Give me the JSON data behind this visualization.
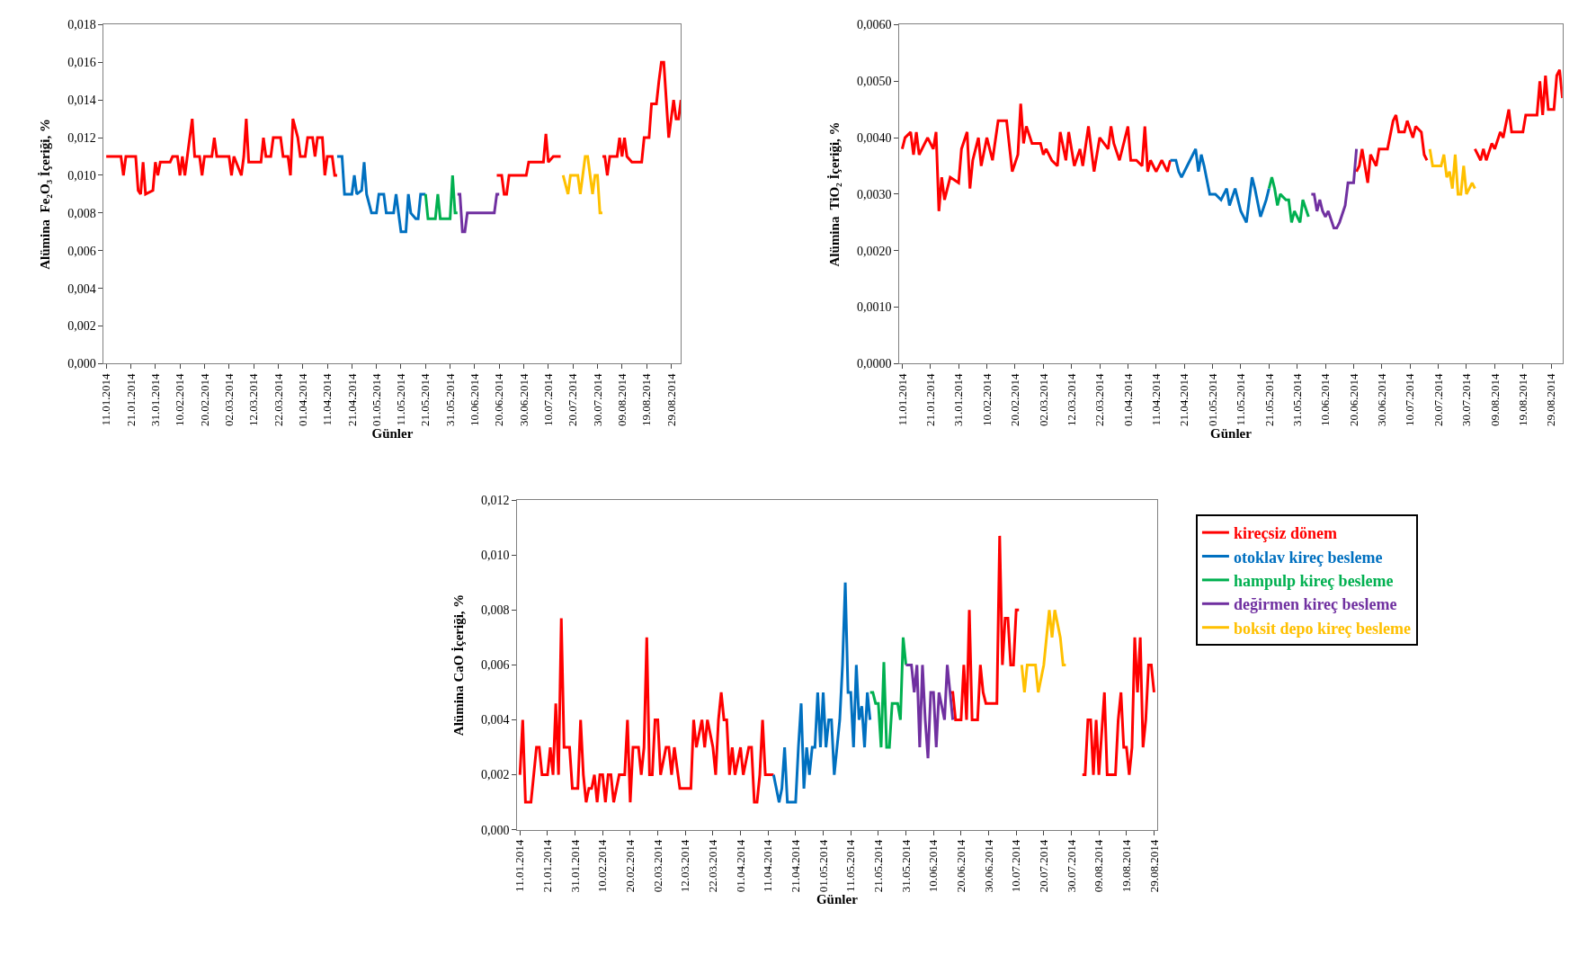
{
  "chart_data": [
    {
      "type": "line",
      "xlabel": "Günler",
      "ylabel": "Alümina  Fe₂O₃ İçeriği, %",
      "legend": "bottom right",
      "line_style": "solid",
      "xlim": [
        "2014-01-10",
        "2014-09-02"
      ],
      "xticks": [
        {
          "value": "2014-01-11",
          "label": "11.01.2014"
        },
        {
          "value": "2014-01-21",
          "label": "21.01.2014"
        },
        {
          "value": "2014-01-31",
          "label": "31.01.2014"
        },
        {
          "value": "2014-02-10",
          "label": "10.02.2014"
        },
        {
          "value": "2014-02-20",
          "label": "20.02.2014"
        },
        {
          "value": "2014-03-02",
          "label": "02.03.2014"
        },
        {
          "value": "2014-03-12",
          "label": "12.03.2014"
        },
        {
          "value": "2014-03-22",
          "label": "22.03.2014"
        },
        {
          "value": "2014-04-01",
          "label": "01.04.2014"
        },
        {
          "value": "2014-04-11",
          "label": "11.04.2014"
        },
        {
          "value": "2014-04-21",
          "label": "21.04.2014"
        },
        {
          "value": "2014-05-01",
          "label": "01.05.2014"
        },
        {
          "value": "2014-05-11",
          "label": "11.05.2014"
        },
        {
          "value": "2014-05-21",
          "label": "21.05.2014"
        },
        {
          "value": "2014-05-31",
          "label": "31.05.2014"
        },
        {
          "value": "2014-06-10",
          "label": "10.06.2014"
        },
        {
          "value": "2014-06-20",
          "label": "20.06.2014"
        },
        {
          "value": "2014-06-30",
          "label": "30.06.2014"
        },
        {
          "value": "2014-07-10",
          "label": "10.07.2014"
        },
        {
          "value": "2014-07-20",
          "label": "20.07.2014"
        },
        {
          "value": "2014-07-30",
          "label": "30.07.2014"
        },
        {
          "value": "2014-08-09",
          "label": "09.08.2014"
        },
        {
          "value": "2014-08-19",
          "label": "19.08.2014"
        },
        {
          "value": "2014-08-29",
          "label": "29.08.2014"
        }
      ],
      "ylim": [
        0,
        0.018
      ],
      "yticks": [
        {
          "value": 0,
          "label": "0,000"
        },
        {
          "value": 0.002,
          "label": "0,002"
        },
        {
          "value": 0.004,
          "label": "0,004"
        },
        {
          "value": 0.006,
          "label": "0,006"
        },
        {
          "value": 0.008,
          "label": "0,008"
        },
        {
          "value": 0.01,
          "label": "0,010"
        },
        {
          "value": 0.012,
          "label": "0,012"
        },
        {
          "value": 0.014,
          "label": "0,014"
        },
        {
          "value": 0.016,
          "label": "0,016"
        },
        {
          "value": 0.018,
          "label": "0,018"
        }
      ],
      "series": [
        {
          "name": "kireçsiz dönem",
          "color": "#ff0000",
          "x": [
            "2014-01-11",
            "2014-01-17",
            "2014-01-18",
            "2014-01-19",
            "2014-01-23",
            "2014-01-24",
            "2014-01-25",
            "2014-01-26",
            "2014-01-27",
            "2014-01-30",
            "2014-01-31",
            "2014-02-01",
            "2014-02-02",
            "2014-02-06",
            "2014-02-07",
            "2014-02-09",
            "2014-02-10",
            "2014-02-11",
            "2014-02-12",
            "2014-02-13",
            "2014-02-14",
            "2014-02-15",
            "2014-02-16",
            "2014-02-18",
            "2014-02-19",
            "2014-02-20",
            "2014-02-23",
            "2014-02-24",
            "2014-02-25",
            "2014-03-02",
            "2014-03-03",
            "2014-03-04",
            "2014-03-07",
            "2014-03-08",
            "2014-03-09",
            "2014-03-10",
            "2014-03-15",
            "2014-03-16",
            "2014-03-17",
            "2014-03-19",
            "2014-03-20",
            "2014-03-23",
            "2014-03-24",
            "2014-03-26",
            "2014-03-27",
            "2014-03-28",
            "2014-03-30",
            "2014-03-31",
            "2014-04-02",
            "2014-04-03",
            "2014-04-05",
            "2014-04-06",
            "2014-04-07",
            "2014-04-09",
            "2014-04-10",
            "2014-04-11",
            "2014-04-13",
            "2014-04-14",
            "2014-04-15",
            "2014-05-18",
            "2014-06-19",
            "2014-06-21",
            "2014-06-22",
            "2014-06-23",
            "2014-06-24",
            "2014-07-01",
            "2014-07-02",
            "2014-07-08",
            "2014-07-09",
            "2014-07-10",
            "2014-07-12",
            "2014-07-15",
            "2014-07-24",
            "2014-08-01",
            "2014-08-02",
            "2014-08-03",
            "2014-08-04",
            "2014-08-07",
            "2014-08-08",
            "2014-08-09",
            "2014-08-10",
            "2014-08-11",
            "2014-08-13",
            "2014-08-17",
            "2014-08-18",
            "2014-08-20",
            "2014-08-21",
            "2014-08-23",
            "2014-08-24",
            "2014-08-25",
            "2014-08-26",
            "2014-08-28",
            "2014-08-29",
            "2014-08-30",
            "2014-08-31",
            "2014-09-01",
            "2014-09-02"
          ],
          "values": [
            0.011,
            0.011,
            0.01,
            0.011,
            0.011,
            0.0092,
            0.009,
            0.0107,
            0.009,
            0.0092,
            0.0107,
            0.01,
            0.0107,
            0.0107,
            0.011,
            0.011,
            0.01,
            0.011,
            0.01,
            0.011,
            0.012,
            0.013,
            0.011,
            0.011,
            0.01,
            0.011,
            0.011,
            0.012,
            0.011,
            0.011,
            0.01,
            0.011,
            0.01,
            0.011,
            0.013,
            0.0107,
            0.0107,
            0.012,
            0.011,
            0.011,
            0.012,
            0.012,
            0.011,
            0.011,
            0.01,
            0.013,
            0.012,
            0.011,
            0.011,
            0.012,
            0.012,
            0.011,
            0.012,
            0.012,
            0.01,
            0.011,
            0.011,
            0.01,
            0.01,
            null,
            0.01,
            0.01,
            0.009,
            0.009,
            0.01,
            0.01,
            0.0107,
            0.0107,
            0.0122,
            0.0107,
            0.011,
            0.011,
            null,
            0.011,
            0.011,
            0.01,
            0.011,
            0.011,
            0.012,
            0.011,
            0.012,
            0.011,
            0.0107,
            0.0107,
            0.012,
            0.012,
            0.0138,
            0.0138,
            0.015,
            0.016,
            0.016,
            0.012,
            0.013,
            0.014,
            0.013,
            0.013,
            0.014
          ]
        },
        {
          "name": "otoklav kireç besleme",
          "color": "#0070c0",
          "x": [
            "2014-04-15",
            "2014-04-17",
            "2014-04-18",
            "2014-04-21",
            "2014-04-22",
            "2014-04-23",
            "2014-04-25",
            "2014-04-26",
            "2014-04-27",
            "2014-04-29",
            "2014-05-01",
            "2014-05-02",
            "2014-05-04",
            "2014-05-05",
            "2014-05-08",
            "2014-05-09",
            "2014-05-10",
            "2014-05-11",
            "2014-05-13",
            "2014-05-14",
            "2014-05-15",
            "2014-05-17",
            "2014-05-18",
            "2014-05-19",
            "2014-05-21"
          ],
          "values": [
            0.011,
            0.011,
            0.009,
            0.009,
            0.01,
            0.009,
            0.0092,
            0.0107,
            0.009,
            0.008,
            0.008,
            0.009,
            0.009,
            0.008,
            0.008,
            0.009,
            0.008,
            0.007,
            0.007,
            0.009,
            0.008,
            0.0077,
            0.0077,
            0.009,
            0.009
          ]
        },
        {
          "name": "hampulp kireç besleme",
          "color": "#00b050",
          "x": [
            "2014-05-21",
            "2014-05-22",
            "2014-05-25",
            "2014-05-26",
            "2014-05-27",
            "2014-05-31",
            "2014-06-01",
            "2014-06-02",
            "2014-06-03"
          ],
          "values": [
            0.009,
            0.0077,
            0.0077,
            0.009,
            0.0077,
            0.0077,
            0.01,
            0.008,
            0.008
          ]
        },
        {
          "name": "değirmen kireç besleme",
          "color": "#7030a0",
          "x": [
            "2014-06-03",
            "2014-06-04",
            "2014-06-05",
            "2014-06-06",
            "2014-06-07",
            "2014-06-18",
            "2014-06-19",
            "2014-06-20"
          ],
          "values": [
            0.009,
            0.009,
            0.007,
            0.007,
            0.008,
            0.008,
            0.009,
            0.009
          ]
        },
        {
          "name": "boksit depo kireç besleme",
          "color": "#ffc000",
          "x": [
            "2014-07-16",
            "2014-07-18",
            "2014-07-19",
            "2014-07-22",
            "2014-07-23",
            "2014-07-24",
            "2014-07-25",
            "2014-07-26",
            "2014-07-27",
            "2014-07-28",
            "2014-07-29",
            "2014-07-30",
            "2014-07-31",
            "2014-08-01"
          ],
          "values": [
            0.01,
            0.009,
            0.01,
            0.01,
            0.009,
            0.01,
            0.011,
            0.011,
            0.01,
            0.009,
            0.01,
            0.01,
            0.008,
            0.008
          ]
        }
      ]
    },
    {
      "type": "line",
      "xlabel": "Günler",
      "ylabel": "Alümina  TiO₂ İçeriği, %",
      "line_style": "solid",
      "xlim": [
        "2014-01-10",
        "2014-09-02"
      ],
      "xticks": [
        {
          "value": "2014-01-11",
          "label": "11.01.2014"
        },
        {
          "value": "2014-01-21",
          "label": "21.01.2014"
        },
        {
          "value": "2014-01-31",
          "label": "31.01.2014"
        },
        {
          "value": "2014-02-10",
          "label": "10.02.2014"
        },
        {
          "value": "2014-02-20",
          "label": "20.02.2014"
        },
        {
          "value": "2014-03-02",
          "label": "02.03.2014"
        },
        {
          "value": "2014-03-12",
          "label": "12.03.2014"
        },
        {
          "value": "2014-03-22",
          "label": "22.03.2014"
        },
        {
          "value": "2014-04-01",
          "label": "01.04.2014"
        },
        {
          "value": "2014-04-11",
          "label": "11.04.2014"
        },
        {
          "value": "2014-04-21",
          "label": "21.04.2014"
        },
        {
          "value": "2014-05-01",
          "label": "01.05.2014"
        },
        {
          "value": "2014-05-11",
          "label": "11.05.2014"
        },
        {
          "value": "2014-05-21",
          "label": "21.05.2014"
        },
        {
          "value": "2014-05-31",
          "label": "31.05.2014"
        },
        {
          "value": "2014-06-10",
          "label": "10.06.2014"
        },
        {
          "value": "2014-06-20",
          "label": "20.06.2014"
        },
        {
          "value": "2014-06-30",
          "label": "30.06.2014"
        },
        {
          "value": "2014-07-10",
          "label": "10.07.2014"
        },
        {
          "value": "2014-07-20",
          "label": "20.07.2014"
        },
        {
          "value": "2014-07-30",
          "label": "30.07.2014"
        },
        {
          "value": "2014-08-09",
          "label": "09.08.2014"
        },
        {
          "value": "2014-08-19",
          "label": "19.08.2014"
        },
        {
          "value": "2014-08-29",
          "label": "29.08.2014"
        }
      ],
      "ylim": [
        0,
        0.006
      ],
      "yticks": [
        {
          "value": 0,
          "label": "0,0000"
        },
        {
          "value": 0.001,
          "label": "0,0010"
        },
        {
          "value": 0.002,
          "label": "0,0020"
        },
        {
          "value": 0.003,
          "label": "0,0030"
        },
        {
          "value": 0.004,
          "label": "0,0040"
        },
        {
          "value": 0.005,
          "label": "0,0050"
        },
        {
          "value": 0.006,
          "label": "0,0060"
        }
      ],
      "series": [
        {
          "color": "#ff0000",
          "x": [
            "2014-01-11",
            "2014-01-12",
            "2014-01-14",
            "2014-01-15",
            "2014-01-16",
            "2014-01-17",
            "2014-01-20",
            "2014-01-22",
            "2014-01-23",
            "2014-01-24",
            "2014-01-25",
            "2014-01-26",
            "2014-01-28",
            "2014-01-31",
            "2014-02-01",
            "2014-02-03",
            "2014-02-04",
            "2014-02-05",
            "2014-02-07",
            "2014-02-08",
            "2014-02-10",
            "2014-02-12",
            "2014-02-14",
            "2014-02-17",
            "2014-02-19",
            "2014-02-21",
            "2014-02-22",
            "2014-02-23",
            "2014-02-24",
            "2014-02-26",
            "2014-03-01",
            "2014-03-02",
            "2014-03-03",
            "2014-03-05",
            "2014-03-07",
            "2014-03-08",
            "2014-03-10",
            "2014-03-11",
            "2014-03-13",
            "2014-03-15",
            "2014-03-16",
            "2014-03-18",
            "2014-03-20",
            "2014-03-22",
            "2014-03-25",
            "2014-03-26",
            "2014-03-27",
            "2014-03-29",
            "2014-04-01",
            "2014-04-02",
            "2014-04-04",
            "2014-04-06",
            "2014-04-07",
            "2014-04-08",
            "2014-04-09",
            "2014-04-11",
            "2014-04-13",
            "2014-04-15",
            "2014-04-16",
            "2014-05-19",
            "2014-06-21",
            "2014-06-22",
            "2014-06-23",
            "2014-06-25",
            "2014-06-26",
            "2014-06-28",
            "2014-06-29",
            "2014-07-02",
            "2014-07-04",
            "2014-07-05",
            "2014-07-06",
            "2014-07-08",
            "2014-07-09",
            "2014-07-11",
            "2014-07-12",
            "2014-07-14",
            "2014-07-15",
            "2014-07-16",
            "2014-07-25",
            "2014-08-02",
            "2014-08-04",
            "2014-08-05",
            "2014-08-06",
            "2014-08-08",
            "2014-08-09",
            "2014-08-11",
            "2014-08-12",
            "2014-08-14",
            "2014-08-15",
            "2014-08-19",
            "2014-08-20",
            "2014-08-24",
            "2014-08-25",
            "2014-08-26",
            "2014-08-27",
            "2014-08-28",
            "2014-08-30",
            "2014-08-31",
            "2014-09-01",
            "2014-09-02"
          ],
          "values": [
            0.0038,
            0.004,
            0.0041,
            0.0037,
            0.0041,
            0.0037,
            0.004,
            0.0038,
            0.0041,
            0.0027,
            0.0033,
            0.0029,
            0.0033,
            0.0032,
            0.0038,
            0.0041,
            0.0031,
            0.0036,
            0.004,
            0.0035,
            0.004,
            0.0036,
            0.0043,
            0.0043,
            0.0034,
            0.0037,
            0.0046,
            0.0039,
            0.0042,
            0.0039,
            0.0039,
            0.0037,
            0.0038,
            0.0036,
            0.0035,
            0.0041,
            0.0036,
            0.0041,
            0.0035,
            0.0038,
            0.0035,
            0.0042,
            0.0034,
            0.004,
            0.0038,
            0.0042,
            0.0039,
            0.0036,
            0.0042,
            0.0036,
            0.0036,
            0.0035,
            0.0042,
            0.0034,
            0.0036,
            0.0034,
            0.0036,
            0.0034,
            0.0036,
            null,
            0.0034,
            0.0035,
            0.0038,
            0.0032,
            0.0037,
            0.0035,
            0.0038,
            0.0038,
            0.0043,
            0.0044,
            0.0041,
            0.0041,
            0.0043,
            0.004,
            0.0042,
            0.0041,
            0.0037,
            0.0036,
            null,
            0.0038,
            0.0036,
            0.0038,
            0.0036,
            0.0039,
            0.0038,
            0.0041,
            0.004,
            0.0045,
            0.0041,
            0.0041,
            0.0044,
            0.0044,
            0.005,
            0.0044,
            0.0051,
            0.0045,
            0.0045,
            0.0051,
            0.0052,
            0.0047
          ]
        },
        {
          "color": "#0070c0",
          "x": [
            "2014-04-16",
            "2014-04-18",
            "2014-04-19",
            "2014-04-20",
            "2014-04-22",
            "2014-04-24",
            "2014-04-25",
            "2014-04-26",
            "2014-04-27",
            "2014-04-28",
            "2014-04-30",
            "2014-05-02",
            "2014-05-04",
            "2014-05-06",
            "2014-05-07",
            "2014-05-09",
            "2014-05-11",
            "2014-05-13",
            "2014-05-15",
            "2014-05-16",
            "2014-05-18",
            "2014-05-20",
            "2014-05-21"
          ],
          "values": [
            0.0036,
            0.0036,
            0.0034,
            0.0033,
            0.0035,
            0.0037,
            0.0038,
            0.0034,
            0.0037,
            0.0035,
            0.003,
            0.003,
            0.0029,
            0.0031,
            0.0028,
            0.0031,
            0.0027,
            0.0025,
            0.0033,
            0.0031,
            0.0026,
            0.0029,
            0.0031
          ]
        },
        {
          "color": "#00b050",
          "x": [
            "2014-05-21",
            "2014-05-22",
            "2014-05-23",
            "2014-05-24",
            "2014-05-25",
            "2014-05-27",
            "2014-05-28",
            "2014-05-29",
            "2014-05-30",
            "2014-06-01",
            "2014-06-02",
            "2014-06-04"
          ],
          "values": [
            0.0031,
            0.0033,
            0.0031,
            0.0028,
            0.003,
            0.0029,
            0.0029,
            0.0025,
            0.0027,
            0.0025,
            0.0029,
            0.0026
          ]
        },
        {
          "color": "#7030a0",
          "x": [
            "2014-06-05",
            "2014-06-06",
            "2014-06-07",
            "2014-06-08",
            "2014-06-09",
            "2014-06-10",
            "2014-06-11",
            "2014-06-13",
            "2014-06-14",
            "2014-06-15",
            "2014-06-17",
            "2014-06-18",
            "2014-06-20",
            "2014-06-21"
          ],
          "values": [
            0.003,
            0.003,
            0.0027,
            0.0029,
            0.0027,
            0.0026,
            0.0027,
            0.0024,
            0.0024,
            0.0025,
            0.0028,
            0.0032,
            0.0032,
            0.0038
          ]
        },
        {
          "color": "#ffc000",
          "x": [
            "2014-07-17",
            "2014-07-18",
            "2014-07-21",
            "2014-07-22",
            "2014-07-23",
            "2014-07-24",
            "2014-07-25",
            "2014-07-26",
            "2014-07-27",
            "2014-07-28",
            "2014-07-29",
            "2014-07-30",
            "2014-08-01",
            "2014-08-02"
          ],
          "values": [
            0.0038,
            0.0035,
            0.0035,
            0.0037,
            0.0033,
            0.0034,
            0.0031,
            0.0037,
            0.003,
            0.003,
            0.0035,
            0.003,
            0.0032,
            0.0031
          ]
        }
      ]
    },
    {
      "type": "line",
      "xlabel": "Günler",
      "ylabel": "Alümina CaO İçeriği, %",
      "line_style": "solid",
      "xlim": [
        "2014-01-10",
        "2014-08-30"
      ],
      "xticks": [
        {
          "value": "2014-01-11",
          "label": "11.01.2014"
        },
        {
          "value": "2014-01-21",
          "label": "21.01.2014"
        },
        {
          "value": "2014-01-31",
          "label": "31.01.2014"
        },
        {
          "value": "2014-02-10",
          "label": "10.02.2014"
        },
        {
          "value": "2014-02-20",
          "label": "20.02.2014"
        },
        {
          "value": "2014-03-02",
          "label": "02.03.2014"
        },
        {
          "value": "2014-03-12",
          "label": "12.03.2014"
        },
        {
          "value": "2014-03-22",
          "label": "22.03.2014"
        },
        {
          "value": "2014-04-01",
          "label": "01.04.2014"
        },
        {
          "value": "2014-04-11",
          "label": "11.04.2014"
        },
        {
          "value": "2014-04-21",
          "label": "21.04.2014"
        },
        {
          "value": "2014-05-01",
          "label": "01.05.2014"
        },
        {
          "value": "2014-05-11",
          "label": "11.05.2014"
        },
        {
          "value": "2014-05-21",
          "label": "21.05.2014"
        },
        {
          "value": "2014-05-31",
          "label": "31.05.2014"
        },
        {
          "value": "2014-06-10",
          "label": "10.06.2014"
        },
        {
          "value": "2014-06-20",
          "label": "20.06.2014"
        },
        {
          "value": "2014-06-30",
          "label": "30.06.2014"
        },
        {
          "value": "2014-07-10",
          "label": "10.07.2014"
        },
        {
          "value": "2014-07-20",
          "label": "20.07.2014"
        },
        {
          "value": "2014-07-30",
          "label": "30.07.2014"
        },
        {
          "value": "2014-08-09",
          "label": "09.08.2014"
        },
        {
          "value": "2014-08-19",
          "label": "19.08.2014"
        },
        {
          "value": "2014-08-29",
          "label": "29.08.2014"
        }
      ],
      "ylim": [
        0,
        0.012
      ],
      "yticks": [
        {
          "value": 0,
          "label": "0,000"
        },
        {
          "value": 0.002,
          "label": "0,002"
        },
        {
          "value": 0.004,
          "label": "0,004"
        },
        {
          "value": 0.006,
          "label": "0,006"
        },
        {
          "value": 0.008,
          "label": "0,008"
        },
        {
          "value": 0.01,
          "label": "0,010"
        },
        {
          "value": 0.012,
          "label": "0,012"
        }
      ],
      "series": [
        {
          "color": "#ff0000",
          "x": [
            "2014-01-11",
            "2014-01-12",
            "2014-01-13",
            "2014-01-15",
            "2014-01-16",
            "2014-01-17",
            "2014-01-18",
            "2014-01-19",
            "2014-01-21",
            "2014-01-22",
            "2014-01-23",
            "2014-01-24",
            "2014-01-25",
            "2014-01-26",
            "2014-01-27",
            "2014-01-29",
            "2014-01-30",
            "2014-02-01",
            "2014-02-02",
            "2014-02-03",
            "2014-02-04",
            "2014-02-05",
            "2014-02-06",
            "2014-02-07",
            "2014-02-08",
            "2014-02-09",
            "2014-02-10",
            "2014-02-11",
            "2014-02-12",
            "2014-02-13",
            "2014-02-14",
            "2014-02-16",
            "2014-02-18",
            "2014-02-19",
            "2014-02-20",
            "2014-02-21",
            "2014-02-23",
            "2014-02-24",
            "2014-02-25",
            "2014-02-26",
            "2014-02-27",
            "2014-02-28",
            "2014-03-01",
            "2014-03-02",
            "2014-03-03",
            "2014-03-05",
            "2014-03-06",
            "2014-03-07",
            "2014-03-08",
            "2014-03-10",
            "2014-03-14",
            "2014-03-15",
            "2014-03-16",
            "2014-03-18",
            "2014-03-19",
            "2014-03-20",
            "2014-03-22",
            "2014-03-23",
            "2014-03-24",
            "2014-03-25",
            "2014-03-26",
            "2014-03-27",
            "2014-03-28",
            "2014-03-29",
            "2014-03-30",
            "2014-04-01",
            "2014-04-02",
            "2014-04-04",
            "2014-04-05",
            "2014-04-06",
            "2014-04-07",
            "2014-04-08",
            "2014-04-09",
            "2014-04-10",
            "2014-04-13",
            "2014-05-18",
            "2014-06-16",
            "2014-06-17",
            "2014-06-18",
            "2014-06-20",
            "2014-06-21",
            "2014-06-22",
            "2014-06-23",
            "2014-06-24",
            "2014-06-26",
            "2014-06-27",
            "2014-06-28",
            "2014-06-29",
            "2014-07-03",
            "2014-07-04",
            "2014-07-05",
            "2014-07-06",
            "2014-07-07",
            "2014-07-08",
            "2014-07-09",
            "2014-07-10",
            "2014-07-11",
            "2014-07-25",
            "2014-08-03",
            "2014-08-04",
            "2014-08-05",
            "2014-08-06",
            "2014-08-07",
            "2014-08-08",
            "2014-08-09",
            "2014-08-11",
            "2014-08-12",
            "2014-08-15",
            "2014-08-16",
            "2014-08-17",
            "2014-08-18",
            "2014-08-19",
            "2014-08-20",
            "2014-08-21",
            "2014-08-22",
            "2014-08-23",
            "2014-08-24",
            "2014-08-25",
            "2014-08-26",
            "2014-08-27",
            "2014-08-28",
            "2014-08-29"
          ],
          "values": [
            0.002,
            0.004,
            0.001,
            0.001,
            0.002,
            0.003,
            0.003,
            0.002,
            0.002,
            0.003,
            0.002,
            0.0046,
            0.002,
            0.0077,
            0.003,
            0.003,
            0.0015,
            0.0015,
            0.004,
            0.002,
            0.001,
            0.0015,
            0.0015,
            0.002,
            0.001,
            0.002,
            0.002,
            0.001,
            0.002,
            0.002,
            0.001,
            0.002,
            0.002,
            0.004,
            0.001,
            0.003,
            0.003,
            0.002,
            0.003,
            0.007,
            0.002,
            0.002,
            0.004,
            0.004,
            0.002,
            0.003,
            0.003,
            0.002,
            0.003,
            0.0015,
            0.0015,
            0.004,
            0.003,
            0.004,
            0.003,
            0.004,
            0.003,
            0.002,
            0.004,
            0.005,
            0.004,
            0.004,
            0.002,
            0.003,
            0.002,
            0.003,
            0.002,
            0.003,
            0.003,
            0.001,
            0.001,
            0.002,
            0.004,
            0.002,
            0.002,
            null,
            0.005,
            0.005,
            0.004,
            0.004,
            0.006,
            0.004,
            0.008,
            0.004,
            0.004,
            0.006,
            0.005,
            0.0046,
            0.0046,
            0.0107,
            0.006,
            0.0077,
            0.0077,
            0.006,
            0.006,
            0.008,
            0.008,
            null,
            0.002,
            0.002,
            0.004,
            0.004,
            0.002,
            0.004,
            0.002,
            0.005,
            0.002,
            0.002,
            0.004,
            0.005,
            0.003,
            0.003,
            0.002,
            0.003,
            0.007,
            0.005,
            0.007,
            0.003,
            0.004,
            0.006,
            0.006,
            0.005
          ]
        },
        {
          "color": "#0070c0",
          "x": [
            "2014-04-13",
            "2014-04-15",
            "2014-04-16",
            "2014-04-17",
            "2014-04-18",
            "2014-04-21",
            "2014-04-22",
            "2014-04-23",
            "2014-04-24",
            "2014-04-25",
            "2014-04-26",
            "2014-04-27",
            "2014-04-28",
            "2014-04-29",
            "2014-04-30",
            "2014-05-01",
            "2014-05-02",
            "2014-05-03",
            "2014-05-04",
            "2014-05-05",
            "2014-05-06",
            "2014-05-07",
            "2014-05-08",
            "2014-05-09",
            "2014-05-10",
            "2014-05-11",
            "2014-05-12",
            "2014-05-13",
            "2014-05-14",
            "2014-05-15",
            "2014-05-16",
            "2014-05-17",
            "2014-05-18"
          ],
          "values": [
            0.002,
            0.001,
            0.0015,
            0.003,
            0.001,
            0.001,
            0.003,
            0.0046,
            0.0015,
            0.003,
            0.002,
            0.003,
            0.003,
            0.005,
            0.003,
            0.005,
            0.003,
            0.004,
            0.004,
            0.002,
            0.003,
            0.004,
            0.006,
            0.009,
            0.005,
            0.005,
            0.003,
            0.006,
            0.004,
            0.0045,
            0.003,
            0.005,
            0.004
          ]
        },
        {
          "color": "#00b050",
          "x": [
            "2014-05-18",
            "2014-05-19",
            "2014-05-20",
            "2014-05-21",
            "2014-05-22",
            "2014-05-23",
            "2014-05-24",
            "2014-05-25",
            "2014-05-26",
            "2014-05-28",
            "2014-05-29",
            "2014-05-30",
            "2014-05-31"
          ],
          "values": [
            0.005,
            0.005,
            0.0046,
            0.0046,
            0.003,
            0.0061,
            0.003,
            0.003,
            0.0046,
            0.0046,
            0.004,
            0.007,
            0.006
          ]
        },
        {
          "color": "#7030a0",
          "x": [
            "2014-05-31",
            "2014-06-02",
            "2014-06-03",
            "2014-06-04",
            "2014-06-05",
            "2014-06-06",
            "2014-06-07",
            "2014-06-08",
            "2014-06-09",
            "2014-06-10",
            "2014-06-11",
            "2014-06-12",
            "2014-06-14",
            "2014-06-15",
            "2014-06-16",
            "2014-06-17"
          ],
          "values": [
            0.006,
            0.006,
            0.005,
            0.006,
            0.003,
            0.006,
            0.004,
            0.0026,
            0.005,
            0.005,
            0.003,
            0.005,
            0.004,
            0.006,
            0.005,
            0.004
          ]
        },
        {
          "color": "#ffc000",
          "x": [
            "2014-07-12",
            "2014-07-13",
            "2014-07-14",
            "2014-07-17",
            "2014-07-18",
            "2014-07-20",
            "2014-07-21",
            "2014-07-22",
            "2014-07-23",
            "2014-07-24",
            "2014-07-26",
            "2014-07-27",
            "2014-07-28"
          ],
          "values": [
            0.006,
            0.005,
            0.006,
            0.006,
            0.005,
            0.006,
            0.007,
            0.008,
            0.007,
            0.008,
            0.007,
            0.006,
            0.006
          ]
        }
      ]
    }
  ]
}
